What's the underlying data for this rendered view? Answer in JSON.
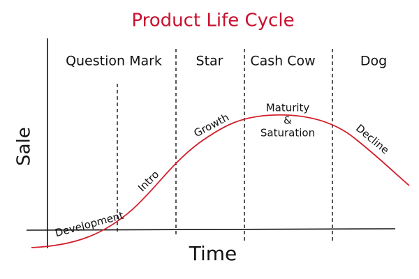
{
  "title": "Product Life Cycle",
  "axes": {
    "y_label": "Sale",
    "x_label": "Time"
  },
  "phases": [
    "Question Mark",
    "Star",
    "Cash Cow",
    "Dog"
  ],
  "stages": {
    "development": "Development",
    "intro": "Intro",
    "growth": "Growth",
    "maturity": [
      "Maturity",
      "&",
      "Saturation"
    ],
    "decline": "Decline"
  }
}
